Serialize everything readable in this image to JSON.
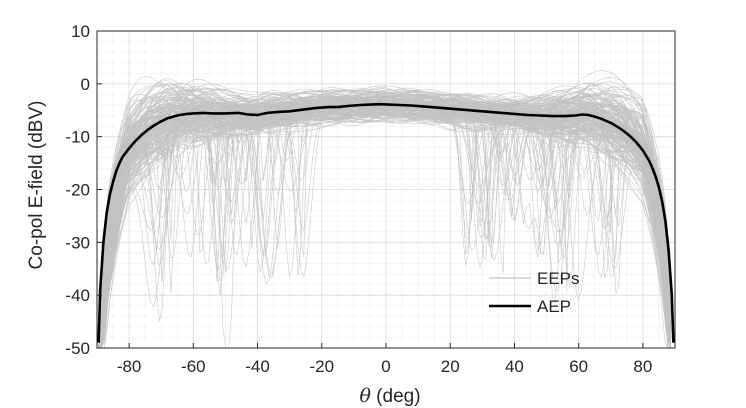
{
  "chart_data": {
    "type": "line",
    "title": "",
    "xlabel_symbol": "θ",
    "xlabel_rest": " (deg)",
    "ylabel": "Co-pol E-field (dBV)",
    "xlim": [
      -90,
      90
    ],
    "ylim": [
      -50,
      10
    ],
    "x_ticks": [
      -80,
      -60,
      -40,
      -20,
      0,
      20,
      40,
      60,
      80
    ],
    "y_ticks": [
      10,
      0,
      -10,
      -20,
      -30,
      -40,
      -50
    ],
    "x_minor_step": 5,
    "y_minor_step": 2,
    "grid": true,
    "legend_position": "bottom-right",
    "series": [
      {
        "name": "EEPs",
        "color": "#c2c2c2",
        "count": 200,
        "description_envelope_upper_db": 3,
        "description_envelope_lower_db": -50
      },
      {
        "name": "AEP",
        "color": "#000000",
        "x": [
          -89.5,
          -89,
          -88,
          -87,
          -86,
          -85,
          -84,
          -83,
          -82,
          -80,
          -78,
          -76,
          -74,
          -72,
          -70,
          -68,
          -65,
          -62,
          -60,
          -57,
          -54,
          -50,
          -46,
          -43,
          -40,
          -37,
          -33,
          -30,
          -26,
          -22,
          -18,
          -15,
          -12,
          -8,
          -4,
          -2,
          0,
          4,
          8,
          12,
          16,
          20,
          24,
          28,
          32,
          36,
          40,
          44,
          48,
          52,
          56,
          59,
          61,
          63,
          65,
          67,
          70,
          72,
          74,
          76,
          78,
          80,
          82,
          83,
          84,
          85,
          86,
          87,
          88,
          89,
          89.5
        ],
        "y": [
          -49,
          -39,
          -30,
          -24.5,
          -21,
          -18.5,
          -16.5,
          -15,
          -13.8,
          -12.2,
          -10.8,
          -9.6,
          -8.6,
          -7.8,
          -7.1,
          -6.5,
          -6.0,
          -5.7,
          -5.6,
          -5.5,
          -5.6,
          -5.6,
          -5.5,
          -5.8,
          -5.9,
          -5.5,
          -5.3,
          -5.2,
          -4.9,
          -4.6,
          -4.4,
          -4.4,
          -4.2,
          -4.0,
          -3.9,
          -3.85,
          -3.9,
          -4.0,
          -4.1,
          -4.3,
          -4.5,
          -4.7,
          -4.9,
          -5.1,
          -5.3,
          -5.5,
          -5.7,
          -5.9,
          -6.0,
          -6.1,
          -6.1,
          -6.0,
          -5.8,
          -5.9,
          -6.2,
          -6.6,
          -7.4,
          -8.1,
          -8.9,
          -9.9,
          -11.1,
          -12.6,
          -14.6,
          -16.0,
          -17.6,
          -19.6,
          -22.3,
          -26.0,
          -31.5,
          -40.0,
          -49.0
        ]
      }
    ]
  }
}
